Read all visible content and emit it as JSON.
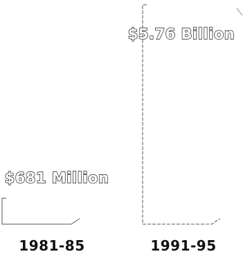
{
  "chart_data": {
    "type": "bar",
    "categories": [
      "1981-85",
      "1991-95"
    ],
    "values": [
      681,
      5760
    ],
    "value_units": "millions of dollars",
    "value_labels": [
      "$681 Million",
      "$5.76 Billion"
    ],
    "title": "",
    "xlabel": "",
    "ylabel": "",
    "grid": false,
    "legend": "none",
    "colors": {
      "bar_outline": "#555555",
      "label_fill": "#ffffff",
      "label_stroke": "#1a1a1a",
      "category_text": "#111111"
    }
  }
}
